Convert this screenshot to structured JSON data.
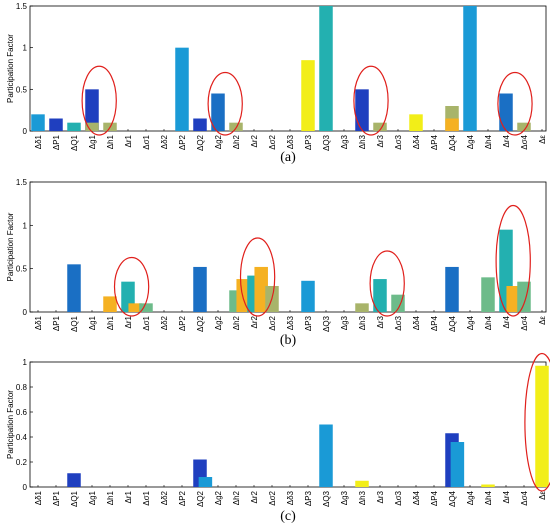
{
  "figure": {
    "ylabel": "Participation Factor",
    "captions": [
      "(a)",
      "(b)",
      "(c)"
    ]
  },
  "colors": {
    "navy": "#1f3fbf",
    "blue": "#1a6fc4",
    "sky": "#1a9ad6",
    "teal": "#23b0b0",
    "green": "#6dbb8a",
    "olive": "#a8b46a",
    "orange": "#f5b122",
    "yellow": "#f2ee18",
    "circle": "#e0201c"
  },
  "chart_data": [
    {
      "type": "bar",
      "panel": "a",
      "ylabel": "Participation Factor",
      "ylim": [
        0,
        1.5
      ],
      "yticks": [
        0,
        0.5,
        1,
        1.5
      ],
      "categories": [
        "Δδ1",
        "ΔP1",
        "ΔQ1",
        "Δg1",
        "Δh1",
        "Δr1",
        "Δσ1",
        "Δδ2",
        "ΔP2",
        "ΔQ2",
        "Δg2",
        "Δh2",
        "Δr2",
        "Δσ2",
        "Δδ3",
        "ΔP3",
        "ΔQ3",
        "Δg3",
        "Δh3",
        "Δr3",
        "Δσ3",
        "Δδ4",
        "ΔP4",
        "ΔQ4",
        "Δg4",
        "Δh4",
        "Δr4",
        "Δσ4",
        "Δε"
      ],
      "bars": [
        {
          "cat": 0,
          "value": 0.2,
          "color": "sky"
        },
        {
          "cat": 1,
          "value": 0.15,
          "color": "navy"
        },
        {
          "cat": 2,
          "value": 0.1,
          "color": "teal"
        },
        {
          "cat": 3,
          "value": 0.5,
          "color": "navy"
        },
        {
          "cat": 3,
          "value": 0.1,
          "color": "olive"
        },
        {
          "cat": 4,
          "value": 0.1,
          "color": "olive"
        },
        {
          "cat": 8,
          "value": 1.0,
          "color": "sky"
        },
        {
          "cat": 9,
          "value": 0.15,
          "color": "navy"
        },
        {
          "cat": 10,
          "value": 0.45,
          "color": "blue"
        },
        {
          "cat": 11,
          "value": 0.1,
          "color": "olive"
        },
        {
          "cat": 15,
          "value": 0.85,
          "color": "yellow"
        },
        {
          "cat": 16,
          "value": 1.5,
          "color": "teal"
        },
        {
          "cat": 18,
          "value": 0.5,
          "color": "navy"
        },
        {
          "cat": 19,
          "value": 0.1,
          "color": "olive"
        },
        {
          "cat": 21,
          "value": 0.2,
          "color": "yellow"
        },
        {
          "cat": 23,
          "value": 0.3,
          "color": "olive"
        },
        {
          "cat": 23,
          "value": 0.15,
          "color": "orange"
        },
        {
          "cat": 24,
          "value": 1.5,
          "color": "sky"
        },
        {
          "cat": 26,
          "value": 0.45,
          "color": "blue"
        },
        {
          "cat": 27,
          "value": 0.1,
          "color": "olive"
        }
      ],
      "ellipses": [
        {
          "cat": 3.4,
          "ry": 0.55
        },
        {
          "cat": 10.4,
          "ry": 0.5
        },
        {
          "cat": 18.5,
          "ry": 0.55
        },
        {
          "cat": 26.5,
          "ry": 0.5
        }
      ]
    },
    {
      "type": "bar",
      "panel": "b",
      "ylabel": "Participation Factor",
      "ylim": [
        0,
        1.5
      ],
      "yticks": [
        0,
        0.5,
        1,
        1.5
      ],
      "categories": [
        "Δδ1",
        "ΔP1",
        "ΔQ1",
        "Δg1",
        "Δh1",
        "Δr1",
        "Δσ1",
        "Δδ2",
        "ΔP2",
        "ΔQ2",
        "Δg2",
        "Δh2",
        "Δr2",
        "Δσ2",
        "Δδ3",
        "ΔP3",
        "ΔQ3",
        "Δg3",
        "Δh3",
        "Δr3",
        "Δσ3",
        "Δδ4",
        "ΔP4",
        "ΔQ4",
        "Δg4",
        "Δh4",
        "Δr4",
        "Δσ4",
        "Δε"
      ],
      "bars": [
        {
          "cat": 2,
          "value": 0.55,
          "color": "blue"
        },
        {
          "cat": 4,
          "value": 0.18,
          "color": "orange"
        },
        {
          "cat": 5,
          "value": 0.35,
          "color": "teal"
        },
        {
          "cat": 5.4,
          "value": 0.1,
          "color": "orange"
        },
        {
          "cat": 6,
          "value": 0.1,
          "color": "green"
        },
        {
          "cat": 9,
          "value": 0.52,
          "color": "blue"
        },
        {
          "cat": 11,
          "value": 0.25,
          "color": "green"
        },
        {
          "cat": 11.4,
          "value": 0.38,
          "color": "orange"
        },
        {
          "cat": 12,
          "value": 0.42,
          "color": "teal"
        },
        {
          "cat": 12.4,
          "value": 0.52,
          "color": "orange"
        },
        {
          "cat": 13,
          "value": 0.3,
          "color": "olive"
        },
        {
          "cat": 15,
          "value": 0.36,
          "color": "sky"
        },
        {
          "cat": 18,
          "value": 0.1,
          "color": "olive"
        },
        {
          "cat": 19,
          "value": 0.38,
          "color": "teal"
        },
        {
          "cat": 20,
          "value": 0.2,
          "color": "green"
        },
        {
          "cat": 23,
          "value": 0.52,
          "color": "blue"
        },
        {
          "cat": 25,
          "value": 0.4,
          "color": "green"
        },
        {
          "cat": 26,
          "value": 0.95,
          "color": "teal"
        },
        {
          "cat": 26.4,
          "value": 0.3,
          "color": "orange"
        },
        {
          "cat": 27,
          "value": 0.35,
          "color": "green"
        }
      ],
      "ellipses": [
        {
          "cat": 5.2,
          "ry": 0.45
        },
        {
          "cat": 12.2,
          "ry": 0.6
        },
        {
          "cat": 19.4,
          "ry": 0.5
        },
        {
          "cat": 26.4,
          "ry": 0.85
        }
      ]
    },
    {
      "type": "bar",
      "panel": "c",
      "ylabel": "Participation Factor",
      "ylim": [
        0,
        1
      ],
      "yticks": [
        0,
        0.2,
        0.4,
        0.6,
        0.8,
        1
      ],
      "categories": [
        "Δδ1",
        "ΔP1",
        "ΔQ1",
        "Δg1",
        "Δh1",
        "Δr1",
        "Δσ1",
        "Δδ2",
        "ΔP2",
        "ΔQ2",
        "Δg2",
        "Δh2",
        "Δr2",
        "Δσ2",
        "Δδ3",
        "ΔP3",
        "ΔQ3",
        "Δg3",
        "Δh3",
        "Δr3",
        "Δσ3",
        "Δδ4",
        "ΔP4",
        "ΔQ4",
        "Δg4",
        "Δh4",
        "Δr4",
        "Δσ4",
        "Δε"
      ],
      "bars": [
        {
          "cat": 2,
          "value": 0.11,
          "color": "navy"
        },
        {
          "cat": 9,
          "value": 0.22,
          "color": "navy"
        },
        {
          "cat": 9.3,
          "value": 0.08,
          "color": "sky"
        },
        {
          "cat": 16,
          "value": 0.5,
          "color": "sky"
        },
        {
          "cat": 18,
          "value": 0.05,
          "color": "yellow"
        },
        {
          "cat": 23,
          "value": 0.43,
          "color": "navy"
        },
        {
          "cat": 23.3,
          "value": 0.36,
          "color": "sky"
        },
        {
          "cat": 25,
          "value": 0.02,
          "color": "yellow"
        },
        {
          "cat": 28,
          "value": 0.97,
          "color": "yellow"
        }
      ],
      "ellipses": [
        {
          "cat": 28,
          "ry": 1.1
        }
      ]
    }
  ]
}
